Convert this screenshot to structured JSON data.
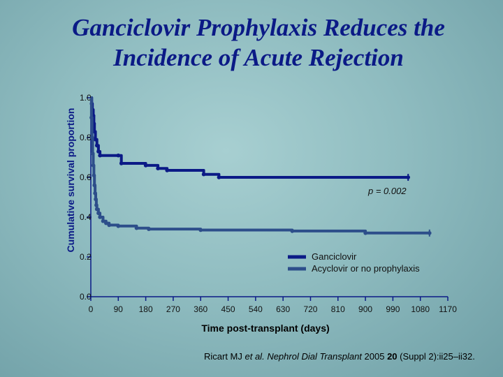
{
  "title_line1": "Ganciclovir Prophylaxis Reduces the",
  "title_line2": "Incidence of Acute Rejection",
  "citation": {
    "authors": "Ricart MJ ",
    "etal": "et al.",
    "journal": "Nephrol Dial Transplant",
    "year": " 2005 ",
    "volume": "20",
    "rest": " (Suppl 2):ii25–ii32."
  },
  "chart_data": {
    "type": "line",
    "title": "Ganciclovir Prophylaxis Reduces the Incidence of Acute Rejection",
    "xlabel": "Time post-transplant (days)",
    "ylabel": "Cumulative survival proportion",
    "xlim": [
      0,
      1170
    ],
    "ylim": [
      0,
      1.0
    ],
    "xticks": [
      0,
      90,
      180,
      270,
      360,
      450,
      540,
      630,
      720,
      810,
      900,
      990,
      1080,
      1170
    ],
    "yticks": [
      0,
      0.2,
      0.4,
      0.6,
      0.8,
      1.0
    ],
    "ytick_labels": [
      "0.0",
      "0.2",
      "0.4",
      "0.6",
      "0.8",
      "1.0"
    ],
    "annotation": "p = 0.002",
    "legend_position": "lower-right",
    "grid": false,
    "series": [
      {
        "name": "Ganciclovir",
        "color": "#0b1a86",
        "x": [
          0,
          3,
          5,
          8,
          10,
          12,
          15,
          20,
          25,
          30,
          90,
          100,
          180,
          220,
          250,
          370,
          420,
          1040
        ],
        "y": [
          1.0,
          0.97,
          0.94,
          0.91,
          0.87,
          0.83,
          0.79,
          0.76,
          0.73,
          0.71,
          0.71,
          0.67,
          0.66,
          0.645,
          0.635,
          0.615,
          0.6,
          0.6
        ]
      },
      {
        "name": "Acyclovir or no prophylaxis",
        "color": "#2d4e8a",
        "x": [
          0,
          2,
          4,
          6,
          8,
          10,
          12,
          14,
          16,
          18,
          20,
          25,
          30,
          40,
          50,
          60,
          90,
          150,
          190,
          360,
          660,
          900,
          1110
        ],
        "y": [
          1.0,
          0.9,
          0.8,
          0.72,
          0.66,
          0.61,
          0.56,
          0.52,
          0.49,
          0.46,
          0.44,
          0.42,
          0.4,
          0.38,
          0.37,
          0.36,
          0.355,
          0.345,
          0.34,
          0.335,
          0.33,
          0.32,
          0.32
        ]
      }
    ]
  }
}
